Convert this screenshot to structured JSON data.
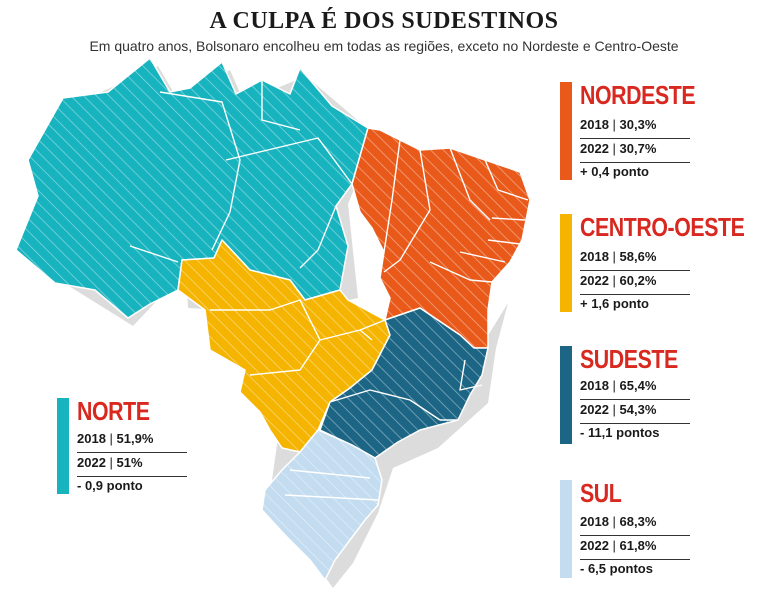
{
  "header": {
    "title": "A CULPA É DOS SUDESTINOS",
    "subtitle": "Em quatro anos, Bolsonaro encolheu em todas as regiões, exceto no Nordeste e Centro-Oeste"
  },
  "colors": {
    "norte": "#17b3bf",
    "nordeste": "#e8591a",
    "centro_oeste": "#f4b400",
    "sudeste": "#1c6584",
    "sul": "#c3dcf0",
    "label_red": "#d8281f"
  },
  "regions": {
    "nordeste": {
      "name": "NORDESTE",
      "y2018": "2018",
      "v2018": "30,3%",
      "y2022": "2022",
      "v2022": "30,7%",
      "change": "+ 0,4 ponto"
    },
    "centro_oeste": {
      "name": "CENTRO-OESTE",
      "y2018": "2018",
      "v2018": "58,6%",
      "y2022": "2022",
      "v2022": "60,2%",
      "change": "+ 1,6 ponto"
    },
    "sudeste": {
      "name": "SUDESTE",
      "y2018": "2018",
      "v2018": "65,4%",
      "y2022": "2022",
      "v2022": "54,3%",
      "change": "- 11,1 pontos"
    },
    "sul": {
      "name": "SUL",
      "y2018": "2018",
      "v2018": "68,3%",
      "y2022": "2022",
      "v2022": "61,8%",
      "change": "- 6,5 pontos"
    },
    "norte": {
      "name": "NORTE",
      "y2018": "2018",
      "v2018": "51,9%",
      "y2022": "2022",
      "v2022": "51%",
      "change": "- 0,9 ponto"
    }
  }
}
